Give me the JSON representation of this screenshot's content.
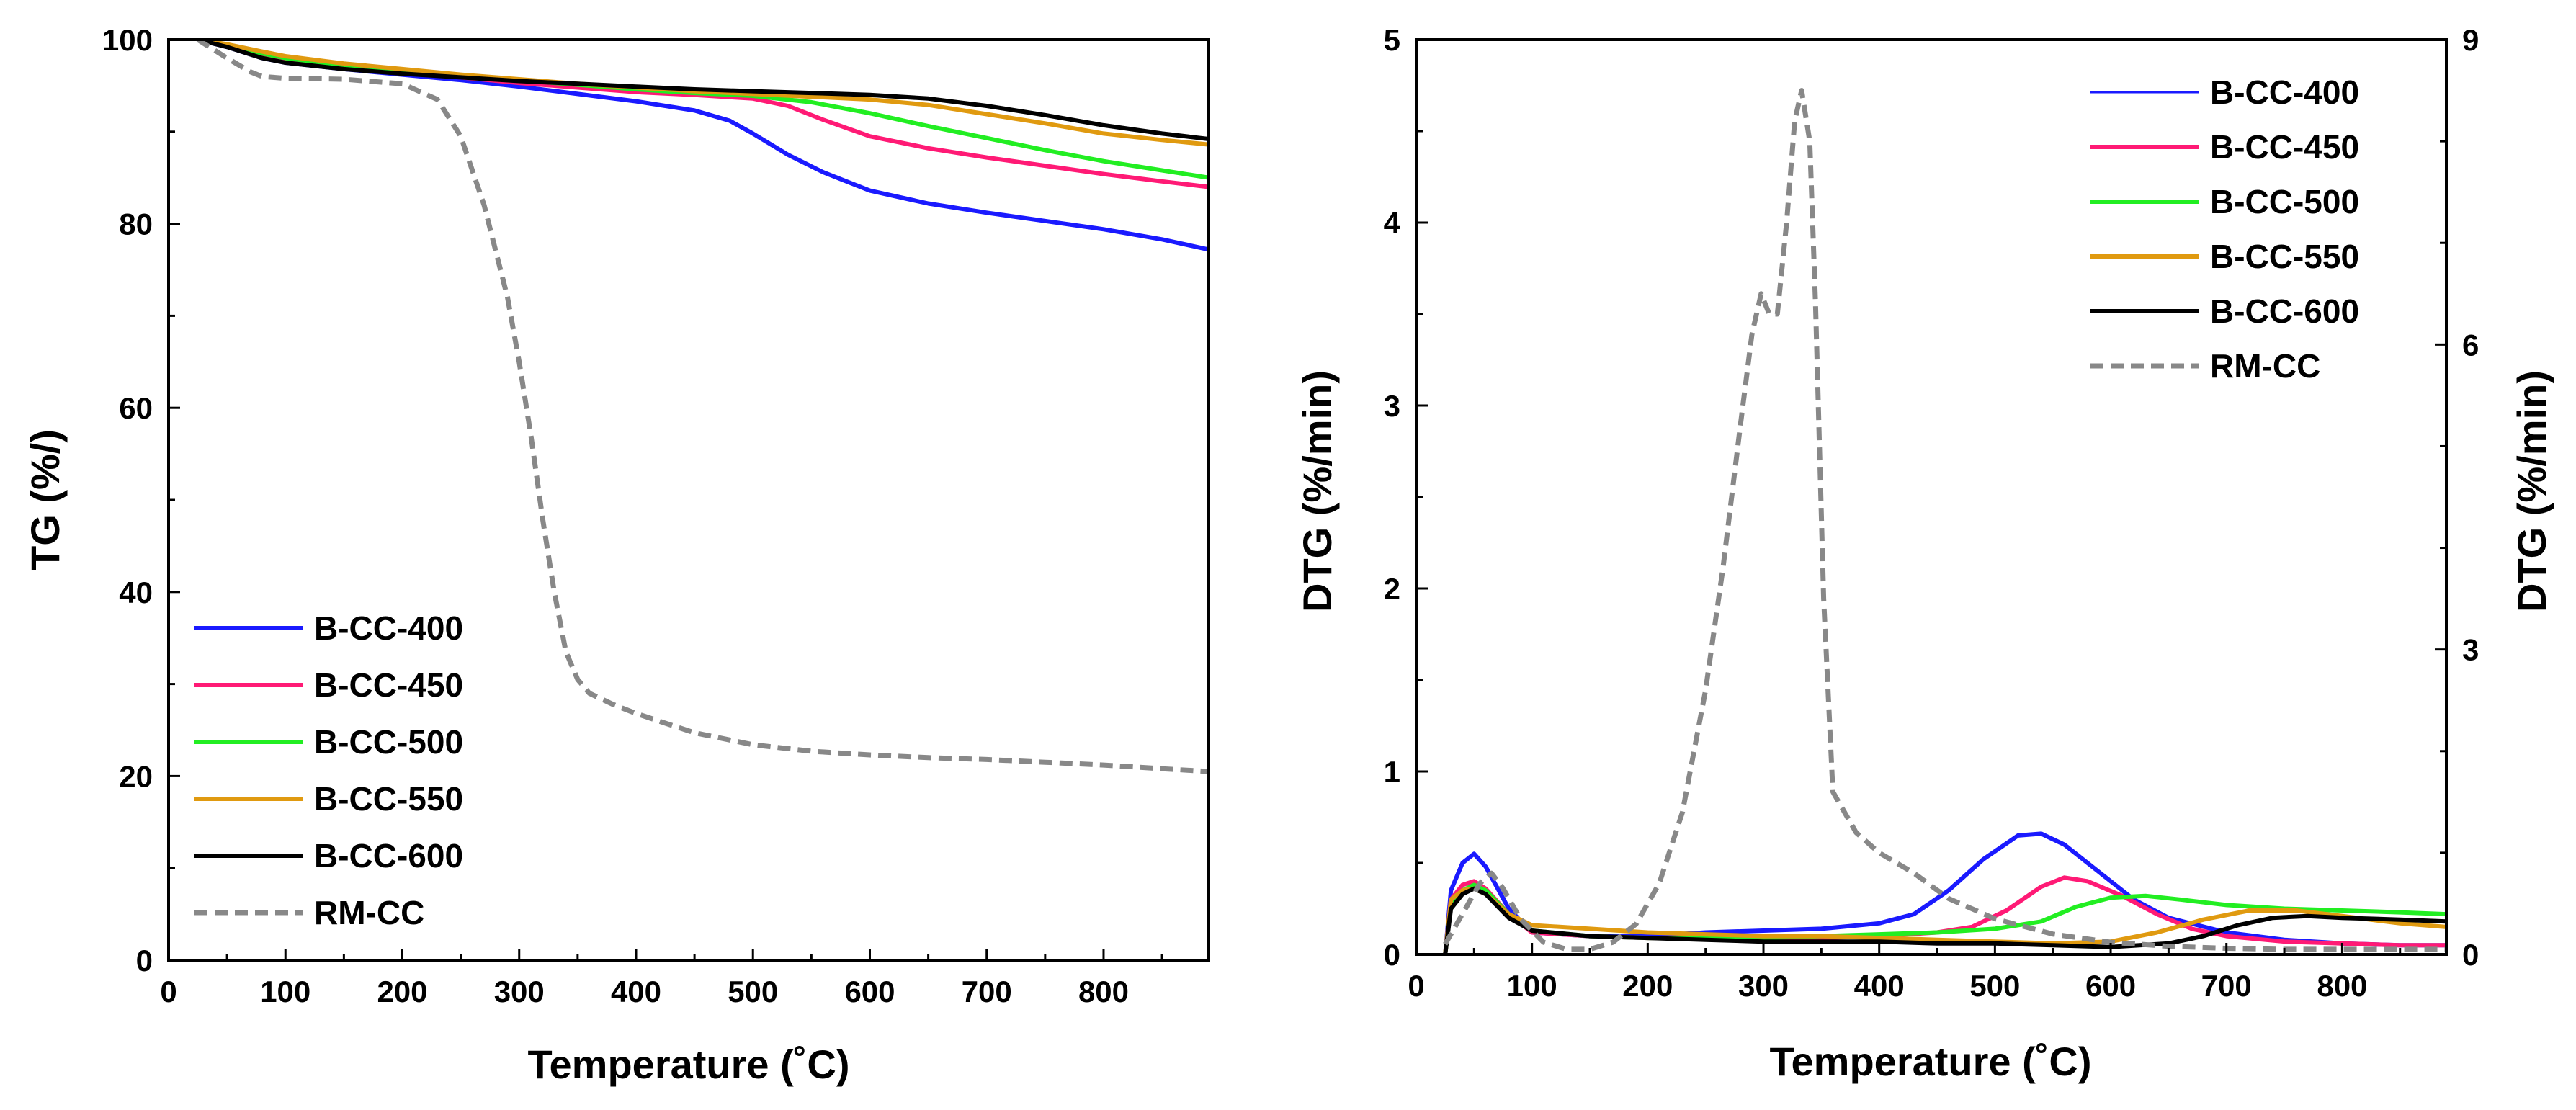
{
  "colors": {
    "B-CC-400": "#1a1aff",
    "B-CC-450": "#ff1a75",
    "B-CC-500": "#22ee22",
    "B-CC-550": "#e09a10",
    "B-CC-600": "#000000",
    "RM-CC": "#888888"
  },
  "chart_data": [
    {
      "id": "tg",
      "type": "line",
      "title": "",
      "xlabel": "Temperature (˚C)",
      "ylabel": "TG (%/)",
      "xlim": [
        0,
        890
      ],
      "ylim": [
        0,
        100
      ],
      "xticks": [
        0,
        100,
        200,
        300,
        400,
        500,
        600,
        700,
        800
      ],
      "yticks": [
        0,
        20,
        40,
        60,
        80,
        100
      ],
      "legend_position": "bottom-left",
      "series": [
        {
          "name": "B-CC-400",
          "dash": false,
          "x": [
            25,
            50,
            80,
            100,
            150,
            200,
            250,
            300,
            350,
            400,
            450,
            480,
            500,
            530,
            560,
            600,
            650,
            700,
            750,
            800,
            850,
            890
          ],
          "y": [
            100,
            99.2,
            98,
            97.5,
            96.8,
            96.2,
            95.6,
            94.9,
            94.1,
            93.3,
            92.3,
            91.2,
            89.8,
            87.5,
            85.6,
            83.6,
            82.2,
            81.2,
            80.3,
            79.4,
            78.3,
            77.2
          ]
        },
        {
          "name": "B-CC-450",
          "dash": false,
          "x": [
            25,
            50,
            80,
            100,
            150,
            200,
            250,
            300,
            350,
            400,
            450,
            500,
            530,
            560,
            600,
            650,
            700,
            750,
            800,
            850,
            890
          ],
          "y": [
            100,
            99.3,
            98.3,
            97.8,
            97,
            96.4,
            95.9,
            95.3,
            94.8,
            94.3,
            94,
            93.6,
            92.8,
            91.3,
            89.5,
            88.2,
            87.2,
            86.3,
            85.4,
            84.6,
            84
          ]
        },
        {
          "name": "B-CC-500",
          "dash": false,
          "x": [
            25,
            50,
            80,
            100,
            150,
            200,
            250,
            300,
            350,
            400,
            450,
            500,
            550,
            600,
            650,
            700,
            750,
            800,
            850,
            890
          ],
          "y": [
            100,
            99.4,
            98.5,
            98,
            97.2,
            96.6,
            96.1,
            95.6,
            95.1,
            94.6,
            94.2,
            93.9,
            93.2,
            92,
            90.6,
            89.3,
            88,
            86.8,
            85.8,
            85
          ]
        },
        {
          "name": "B-CC-550",
          "dash": false,
          "x": [
            25,
            50,
            80,
            100,
            150,
            200,
            250,
            300,
            350,
            400,
            450,
            500,
            550,
            600,
            650,
            700,
            750,
            800,
            850,
            890
          ],
          "y": [
            100,
            99.5,
            98.7,
            98.2,
            97.4,
            96.8,
            96.2,
            95.7,
            95.2,
            94.8,
            94.4,
            94.1,
            93.8,
            93.5,
            92.9,
            91.9,
            90.9,
            89.8,
            89.1,
            88.6
          ]
        },
        {
          "name": "B-CC-600",
          "dash": false,
          "x": [
            25,
            50,
            80,
            100,
            150,
            200,
            250,
            300,
            350,
            400,
            450,
            500,
            550,
            600,
            650,
            700,
            750,
            800,
            850,
            890
          ],
          "y": [
            100,
            99.2,
            98,
            97.5,
            96.8,
            96.3,
            95.9,
            95.5,
            95.2,
            94.9,
            94.6,
            94.4,
            94.2,
            94,
            93.6,
            92.8,
            91.8,
            90.7,
            89.8,
            89.2
          ]
        },
        {
          "name": "RM-CC",
          "dash": true,
          "x": [
            25,
            50,
            70,
            80,
            100,
            150,
            200,
            230,
            250,
            270,
            290,
            300,
            310,
            320,
            330,
            340,
            350,
            360,
            380,
            400,
            450,
            500,
            550,
            600,
            650,
            700,
            750,
            800,
            850,
            890
          ],
          "y": [
            100,
            98,
            96.5,
            96,
            95.8,
            95.7,
            95.2,
            93.5,
            89.5,
            82,
            72,
            65,
            57,
            48,
            40,
            33.5,
            30.5,
            29,
            27.8,
            26.8,
            24.7,
            23.4,
            22.7,
            22.3,
            22,
            21.8,
            21.5,
            21.2,
            20.8,
            20.5
          ]
        }
      ]
    },
    {
      "id": "dtg",
      "type": "line",
      "title": "",
      "xlabel": "Temperature (˚C)",
      "ylabel": "DTG (%/min)",
      "ylabel_right": "DTG (%/min)",
      "xlim": [
        0,
        890
      ],
      "ylim": [
        0,
        5
      ],
      "ylim_right": [
        0,
        9
      ],
      "xticks": [
        0,
        100,
        200,
        300,
        400,
        500,
        600,
        700,
        800
      ],
      "yticks": [
        0,
        1,
        2,
        3,
        4,
        5
      ],
      "yticks_right": [
        0,
        3,
        6,
        9
      ],
      "legend_position": "top-right",
      "series": [
        {
          "name": "B-CC-400",
          "dash": false,
          "axis": "left",
          "x": [
            25,
            30,
            40,
            50,
            60,
            80,
            100,
            150,
            200,
            250,
            300,
            350,
            400,
            430,
            460,
            490,
            520,
            540,
            560,
            590,
            620,
            650,
            700,
            750,
            800,
            850,
            890
          ],
          "y": [
            0,
            0.35,
            0.5,
            0.55,
            0.48,
            0.25,
            0.12,
            0.1,
            0.1,
            0.12,
            0.13,
            0.14,
            0.17,
            0.22,
            0.35,
            0.52,
            0.65,
            0.66,
            0.6,
            0.45,
            0.3,
            0.2,
            0.12,
            0.08,
            0.06,
            0.05,
            0.05
          ]
        },
        {
          "name": "B-CC-450",
          "dash": false,
          "axis": "left",
          "x": [
            25,
            30,
            40,
            50,
            60,
            80,
            100,
            150,
            200,
            250,
            300,
            350,
            400,
            450,
            480,
            510,
            540,
            560,
            580,
            610,
            640,
            670,
            700,
            750,
            800,
            850,
            890
          ],
          "y": [
            0,
            0.3,
            0.38,
            0.4,
            0.36,
            0.22,
            0.12,
            0.1,
            0.09,
            0.09,
            0.09,
            0.09,
            0.1,
            0.12,
            0.15,
            0.24,
            0.37,
            0.42,
            0.4,
            0.32,
            0.22,
            0.14,
            0.1,
            0.07,
            0.06,
            0.05,
            0.05
          ]
        },
        {
          "name": "B-CC-500",
          "dash": false,
          "axis": "left",
          "x": [
            25,
            30,
            40,
            50,
            60,
            80,
            100,
            150,
            200,
            250,
            300,
            350,
            400,
            450,
            500,
            540,
            570,
            600,
            630,
            660,
            700,
            750,
            800,
            850,
            890
          ],
          "y": [
            0,
            0.28,
            0.35,
            0.38,
            0.35,
            0.22,
            0.13,
            0.1,
            0.09,
            0.09,
            0.09,
            0.1,
            0.11,
            0.12,
            0.14,
            0.18,
            0.26,
            0.31,
            0.32,
            0.3,
            0.27,
            0.25,
            0.24,
            0.23,
            0.22
          ]
        },
        {
          "name": "B-CC-550",
          "dash": false,
          "axis": "left",
          "x": [
            25,
            30,
            40,
            50,
            60,
            80,
            100,
            150,
            200,
            250,
            300,
            350,
            400,
            450,
            500,
            550,
            600,
            640,
            680,
            720,
            760,
            800,
            850,
            890
          ],
          "y": [
            0,
            0.3,
            0.35,
            0.36,
            0.33,
            0.22,
            0.16,
            0.14,
            0.12,
            0.11,
            0.1,
            0.1,
            0.09,
            0.08,
            0.07,
            0.06,
            0.07,
            0.12,
            0.19,
            0.24,
            0.24,
            0.21,
            0.17,
            0.15
          ]
        },
        {
          "name": "B-CC-600",
          "dash": false,
          "axis": "left",
          "x": [
            25,
            30,
            40,
            50,
            60,
            80,
            100,
            150,
            200,
            250,
            300,
            350,
            400,
            450,
            500,
            550,
            600,
            650,
            680,
            710,
            740,
            770,
            800,
            850,
            890
          ],
          "y": [
            0,
            0.25,
            0.33,
            0.36,
            0.33,
            0.2,
            0.13,
            0.1,
            0.09,
            0.08,
            0.07,
            0.07,
            0.07,
            0.06,
            0.06,
            0.05,
            0.04,
            0.06,
            0.1,
            0.16,
            0.2,
            0.21,
            0.2,
            0.19,
            0.18
          ]
        },
        {
          "name": "RM-CC",
          "dash": true,
          "axis": "right",
          "x": [
            25,
            40,
            55,
            65,
            75,
            90,
            110,
            130,
            150,
            170,
            190,
            210,
            230,
            250,
            265,
            280,
            290,
            298,
            305,
            312,
            320,
            327,
            333,
            340,
            345,
            352,
            360,
            380,
            400,
            430,
            460,
            500,
            550,
            600,
            650,
            700,
            750,
            800,
            850,
            890
          ],
          "y": [
            0.1,
            0.4,
            0.7,
            0.8,
            0.65,
            0.35,
            0.12,
            0.05,
            0.05,
            0.12,
            0.3,
            0.7,
            1.4,
            2.6,
            3.8,
            5.2,
            6.1,
            6.5,
            6.3,
            6.3,
            7.2,
            8.2,
            8.5,
            8.0,
            6.4,
            3.5,
            1.6,
            1.2,
            1.0,
            0.8,
            0.55,
            0.35,
            0.2,
            0.12,
            0.08,
            0.06,
            0.05,
            0.05,
            0.05,
            0.05
          ]
        }
      ]
    }
  ]
}
